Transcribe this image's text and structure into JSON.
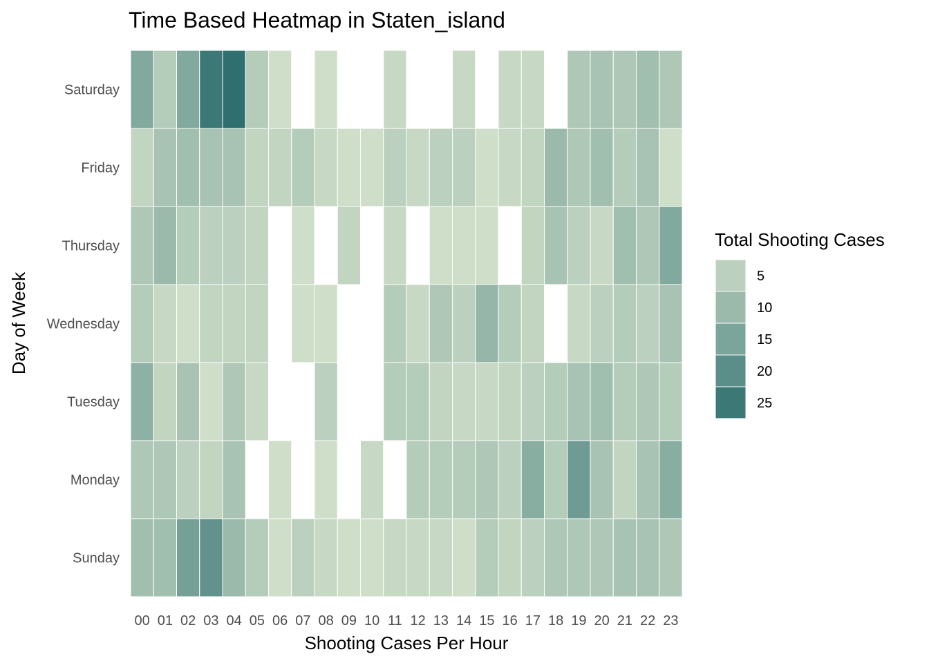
{
  "chart_data": {
    "type": "heatmap",
    "title": "Time Based Heatmap in Staten_island",
    "xlabel": "Shooting Cases Per Hour",
    "ylabel": "Day of Week",
    "x": [
      "00",
      "01",
      "02",
      "03",
      "04",
      "05",
      "06",
      "07",
      "08",
      "09",
      "10",
      "11",
      "12",
      "13",
      "14",
      "15",
      "16",
      "17",
      "18",
      "19",
      "20",
      "21",
      "22",
      "23"
    ],
    "y": [
      "Saturday",
      "Friday",
      "Thursday",
      "Wednesday",
      "Tuesday",
      "Monday",
      "Sunday"
    ],
    "values": [
      [
        14,
        6,
        14,
        25,
        27,
        6,
        2,
        null,
        2,
        null,
        null,
        3,
        null,
        null,
        3,
        null,
        3,
        3,
        null,
        7,
        8,
        7,
        9,
        7
      ],
      [
        4,
        8,
        9,
        8,
        8,
        4,
        4,
        6,
        3,
        2,
        2,
        5,
        3,
        5,
        5,
        2,
        3,
        4,
        10,
        7,
        9,
        6,
        8,
        2
      ],
      [
        7,
        10,
        6,
        5,
        5,
        4,
        null,
        2,
        null,
        4,
        null,
        3,
        null,
        2,
        2,
        2,
        null,
        4,
        8,
        5,
        3,
        9,
        7,
        14
      ],
      [
        6,
        3,
        2,
        4,
        4,
        4,
        null,
        2,
        2,
        null,
        null,
        6,
        3,
        7,
        5,
        11,
        6,
        4,
        null,
        3,
        5,
        6,
        5,
        8
      ],
      [
        12,
        4,
        8,
        2,
        7,
        3,
        null,
        null,
        5,
        null,
        null,
        6,
        6,
        4,
        3,
        3,
        4,
        5,
        6,
        8,
        9,
        6,
        7,
        6
      ],
      [
        7,
        7,
        5,
        4,
        8,
        null,
        2,
        null,
        2,
        null,
        3,
        null,
        6,
        6,
        6,
        7,
        5,
        13,
        6,
        17,
        8,
        4,
        8,
        13
      ],
      [
        9,
        9,
        16,
        19,
        10,
        6,
        2,
        5,
        3,
        2,
        2,
        3,
        3,
        3,
        2,
        6,
        4,
        5,
        7,
        7,
        7,
        8,
        8,
        7
      ]
    ],
    "color_scale": {
      "low": "#d4e2cc",
      "high": "#2f6f6f",
      "min": 1,
      "max": 27
    },
    "grid": false,
    "legend": {
      "title": "Total Shooting Cases",
      "position": "right",
      "breaks": [
        5,
        10,
        15,
        20,
        25
      ]
    }
  }
}
